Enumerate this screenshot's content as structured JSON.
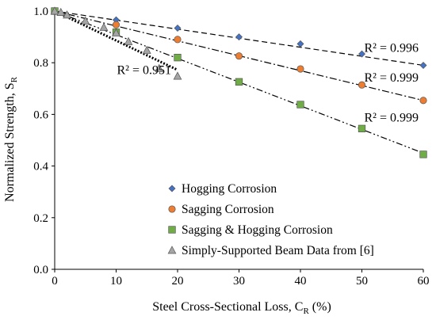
{
  "chart_data": {
    "type": "scatter",
    "xlabel": "Steel Cross-Sectional Loss, C",
    "xlabel_sub": "R",
    "xlabel_unit": " (%)",
    "ylabel": "Normalized Strength, S",
    "ylabel_sub": "R",
    "xlim": [
      0,
      60
    ],
    "ylim": [
      0.0,
      1.0
    ],
    "x_ticks": [
      "0",
      "10",
      "20",
      "30",
      "40",
      "50",
      "60"
    ],
    "y_ticks": [
      "0.0",
      "0.2",
      "0.4",
      "0.6",
      "0.8",
      "1.0"
    ],
    "grid": false,
    "legend_position": "bottom-right",
    "series": [
      {
        "name": "Hogging Corrosion",
        "marker": "diamond",
        "color": "#4472C4",
        "x": [
          0,
          10,
          20,
          30,
          40,
          50,
          60
        ],
        "y": [
          1.0,
          0.966,
          0.934,
          0.9,
          0.873,
          0.834,
          0.79
        ],
        "trend": {
          "style": "dashed",
          "y0": 1.0,
          "y1": 0.79,
          "x0": 0,
          "x1": 60
        },
        "r2_label": "R² = 0.996"
      },
      {
        "name": "Sagging Corrosion",
        "marker": "circle",
        "color": "#ED7D31",
        "x": [
          0,
          10,
          20,
          30,
          40,
          50,
          60
        ],
        "y": [
          1.0,
          0.947,
          0.89,
          0.826,
          0.776,
          0.714,
          0.654
        ],
        "trend": {
          "style": "dashdot",
          "y0": 1.0,
          "y1": 0.654,
          "x0": 0,
          "x1": 60
        },
        "r2_label": "R² = 0.999"
      },
      {
        "name": "Sagging & Hogging Corrosion",
        "marker": "square",
        "color": "#70AD47",
        "x": [
          0,
          10,
          20,
          30,
          40,
          50,
          60
        ],
        "y": [
          1.0,
          0.918,
          0.82,
          0.726,
          0.638,
          0.545,
          0.445
        ],
        "trend": {
          "style": "dashdotdot",
          "y0": 1.0,
          "y1": 0.45,
          "x0": 0,
          "x1": 60
        },
        "r2_label": "R² = 0.999"
      },
      {
        "name": "Simply-Supported Beam Data from [6]",
        "marker": "triangle",
        "color": "#A5A5A5",
        "x": [
          0,
          1,
          2,
          5,
          8,
          10,
          12,
          15,
          17,
          20
        ],
        "y": [
          1.0,
          0.995,
          0.985,
          0.962,
          0.937,
          0.915,
          0.882,
          0.848,
          0.778,
          0.748
        ],
        "trend": {
          "style": "dotted",
          "y0": 1.0,
          "y1": 0.772,
          "x0": 0,
          "x1": 20
        },
        "r2_label": "R² = 0.951"
      }
    ]
  }
}
